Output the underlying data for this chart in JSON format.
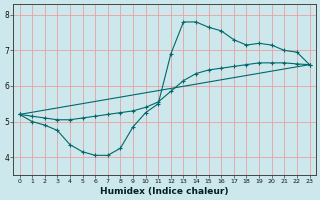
{
  "xlabel": "Humidex (Indice chaleur)",
  "xlim": [
    -0.5,
    23.5
  ],
  "ylim": [
    3.5,
    8.3
  ],
  "xticks": [
    0,
    1,
    2,
    3,
    4,
    5,
    6,
    7,
    8,
    9,
    10,
    11,
    12,
    13,
    14,
    15,
    16,
    17,
    18,
    19,
    20,
    21,
    22,
    23
  ],
  "yticks": [
    4,
    5,
    6,
    7,
    8
  ],
  "bg_color": "#cce8ed",
  "grid_color": "#e8a0a0",
  "line_color": "#006868",
  "line1_x": [
    0,
    1,
    2,
    3,
    4,
    5,
    6,
    7,
    8,
    9,
    10,
    11,
    12,
    13,
    14,
    15,
    16,
    17,
    18,
    19,
    20,
    21,
    22,
    23
  ],
  "line1_y": [
    5.2,
    5.0,
    4.9,
    4.75,
    4.35,
    4.15,
    4.05,
    4.05,
    4.25,
    4.85,
    5.25,
    5.5,
    6.9,
    7.8,
    7.8,
    7.65,
    7.55,
    7.3,
    7.15,
    7.2,
    7.15,
    7.0,
    6.95,
    6.6
  ],
  "line2_x": [
    0,
    1,
    2,
    3,
    4,
    5,
    6,
    7,
    8,
    9,
    10,
    11,
    12,
    13,
    14,
    15,
    16,
    17,
    18,
    19,
    20,
    21,
    22,
    23
  ],
  "line2_y": [
    5.2,
    5.15,
    5.1,
    5.05,
    5.05,
    5.1,
    5.15,
    5.2,
    5.25,
    5.3,
    5.4,
    5.55,
    5.85,
    6.15,
    6.35,
    6.45,
    6.5,
    6.55,
    6.6,
    6.65,
    6.65,
    6.65,
    6.62,
    6.6
  ],
  "line3_x": [
    0,
    23
  ],
  "line3_y": [
    5.2,
    6.6
  ]
}
